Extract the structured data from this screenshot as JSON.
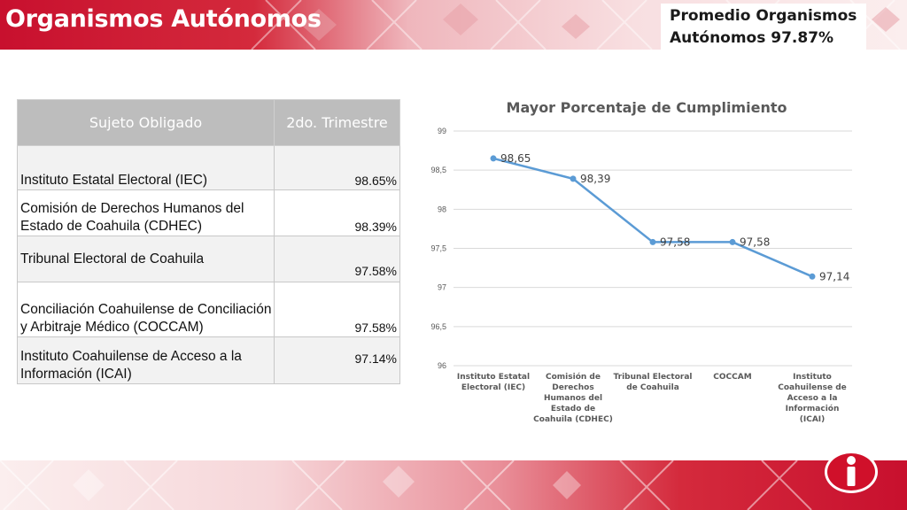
{
  "header": {
    "title": "Organismos Autónomos",
    "average_line1": "Promedio Organismos",
    "average_line2": "Autónomos 97.87%"
  },
  "table": {
    "headers": [
      "Sujeto Obligado",
      "2do. Trimestre"
    ],
    "rows": [
      {
        "name": "Instituto Estatal Electoral (IEC)",
        "value": "98.65%"
      },
      {
        "name": "Comisión de Derechos Humanos del Estado de Coahuila (CDHEC)",
        "value": "98.39%"
      },
      {
        "name": "Tribunal Electoral de Coahuila",
        "value": "97.58%"
      },
      {
        "name": "Conciliación Coahuilense de Conciliación y Arbitraje Médico (COCCAM)",
        "value": "97.58%"
      },
      {
        "name": "Instituto Coahuilense de Acceso a la Información (ICAI)",
        "value": "97.14%"
      }
    ]
  },
  "chart_data": {
    "type": "line",
    "title": "Mayor Porcentaje de Cumplimiento",
    "categories": [
      "Instituto Estatal Electoral (IEC)",
      "Comisión de Derechos Humanos del Estado de Coahuila (CDHEC)",
      "Tribunal Electoral de Coahuila",
      "COCCAM",
      "Instituto Coahuilense de Acceso a la Información (ICAI)"
    ],
    "values": [
      98.65,
      98.39,
      97.58,
      97.58,
      97.14
    ],
    "data_labels": [
      "98,65",
      "98,39",
      "97,58",
      "97,58",
      "97,14"
    ],
    "yticks": [
      "96",
      "96,5",
      "97",
      "97,5",
      "98",
      "98,5",
      "99"
    ],
    "ylim": [
      96,
      99
    ],
    "grid": true,
    "legend": "none",
    "line_color": "#5b9bd5"
  },
  "colors": {
    "brand_red": "#c9192d",
    "header_text": "#ffffff",
    "table_header_bg": "#bdbdbd"
  },
  "logo": {
    "icon": "info-i-icon"
  }
}
